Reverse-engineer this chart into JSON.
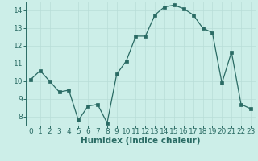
{
  "x": [
    0,
    1,
    2,
    3,
    4,
    5,
    6,
    7,
    8,
    9,
    10,
    11,
    12,
    13,
    14,
    15,
    16,
    17,
    18,
    19,
    20,
    21,
    22,
    23
  ],
  "y": [
    10.1,
    10.6,
    10.0,
    9.4,
    9.5,
    7.8,
    8.6,
    8.7,
    7.65,
    10.4,
    11.15,
    12.55,
    12.55,
    13.75,
    14.2,
    14.3,
    14.1,
    13.75,
    13.0,
    12.75,
    9.9,
    11.65,
    8.7,
    8.45
  ],
  "xlabel": "Humidex (Indice chaleur)",
  "xlim": [
    -0.5,
    23.5
  ],
  "ylim": [
    7.5,
    14.5
  ],
  "yticks": [
    8,
    9,
    10,
    11,
    12,
    13,
    14
  ],
  "xticks": [
    0,
    1,
    2,
    3,
    4,
    5,
    6,
    7,
    8,
    9,
    10,
    11,
    12,
    13,
    14,
    15,
    16,
    17,
    18,
    19,
    20,
    21,
    22,
    23
  ],
  "line_color": "#2a6b64",
  "marker_color": "#2a6b64",
  "bg_color": "#cceee8",
  "grid_color": "#b8ddd8",
  "spine_color": "#2a6b64",
  "tick_color": "#2a6b64",
  "label_color": "#2a6b64",
  "xlabel_fontsize": 7.5,
  "tick_fontsize": 6.5
}
